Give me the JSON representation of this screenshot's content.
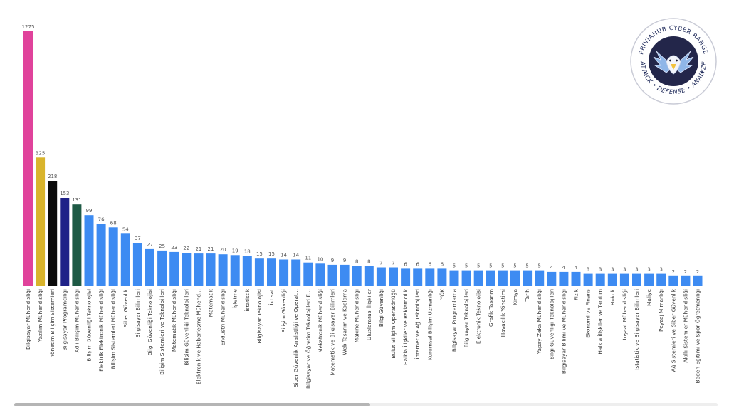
{
  "chart_data": {
    "type": "bar",
    "categories": [
      "Bilgisayar Mühendisliği",
      "Yazılım Mühendisliği",
      "Yönetim Bilişim Sistemleri",
      "Bilgisayar Programcılığı",
      "Adli Bilişim Mühendisliği",
      "Bilişim Güvenliği Teknolojisi",
      "Elektrik Elektronik Mühendisliği",
      "Bilişim Sistemleri Mühendisliği",
      "Siber Güvenlik",
      "Bilgisayar Bilimleri",
      "Bilgi Güvenliği Teknolojisi",
      "Bilişim Sistemleri ve Teknolojileri",
      "Matematik Mühendisliği",
      "Bilişim Güvenliği Teknolojileri",
      "Elektronik ve Haberleşme Mühend...",
      "Matematik",
      "Endüstri Mühendisliği",
      "İşletme",
      "İstatistik",
      "Bilgisayar Teknolojisi",
      "İktisat",
      "Bilişim Güvenliği",
      "Siber Güvenlik Analistliği ve Operat...",
      "Bilgisayar ve Öğretim Teknolojileri E...",
      "Mekatronik Mühendisliği",
      "Matematik ve Bilgisayar Bilimleri",
      "Web Tasarım ve Kodlama",
      "Makine Mühendisliği",
      "Uluslararası İlişkiler",
      "Bilgi Güvenliği",
      "Bulut Bilişim Operatörlüğü",
      "Halkla İlişkiler ve Reklamcılık",
      "İnternet ve Ağ Teknolojileri",
      "Kurumsal Bilişim Uzmanlığı",
      "YÖK",
      "Bilgisayar Programlama",
      "Bilgisayar Teknolojileri",
      "Elektronik Teknolojisi",
      "Grafik Tasarım",
      "Havacılık Yönetimi",
      "Kimya",
      "Tarih",
      "Yapay Zeka Mühendisliği",
      "Bilgi Güvenliği Teknolojileri",
      "Bilgisayar Bilimi ve Mühendisliği",
      "Fizik",
      "Ekonomi ve Finans",
      "Halkla İlişkiler ve Tanıtım",
      "Hukuk",
      "İnşaat Mühendisliği",
      "İstatistik ve Bilgisayar Bilimleri",
      "Maliye",
      "Peyzaj Mimarlığı",
      "Ağ Sistemleri ve Siber Güvenlik",
      "Akıllı Sistemler Mühendisliği",
      "Beden Eğitimi ve Spor Öğretmenliği"
    ],
    "values": [
      1275,
      325,
      218,
      153,
      131,
      99,
      76,
      68,
      54,
      37,
      27,
      25,
      23,
      22,
      21,
      21,
      20,
      19,
      18,
      15,
      15,
      14,
      14,
      11,
      10,
      9,
      9,
      8,
      8,
      7,
      7,
      6,
      6,
      6,
      6,
      5,
      5,
      5,
      5,
      5,
      5,
      5,
      5,
      4,
      4,
      4,
      3,
      3,
      3,
      3,
      3,
      3,
      3,
      2,
      2,
      2
    ],
    "colors": {
      "default": "#3d8bf2",
      "highlights": [
        "#e0429b",
        "#d9b42c",
        "#0b0b0b",
        "#1f2288",
        "#1e5a45"
      ]
    },
    "scale": "sqrt",
    "title": "",
    "xlabel": "",
    "ylabel": "",
    "grid": false,
    "legend": "none"
  },
  "logo": {
    "top_text": "PRIVIAHUB CYBER RANGE",
    "bottom_text": "ATTACK • DEFENSE • ANALYZE"
  }
}
